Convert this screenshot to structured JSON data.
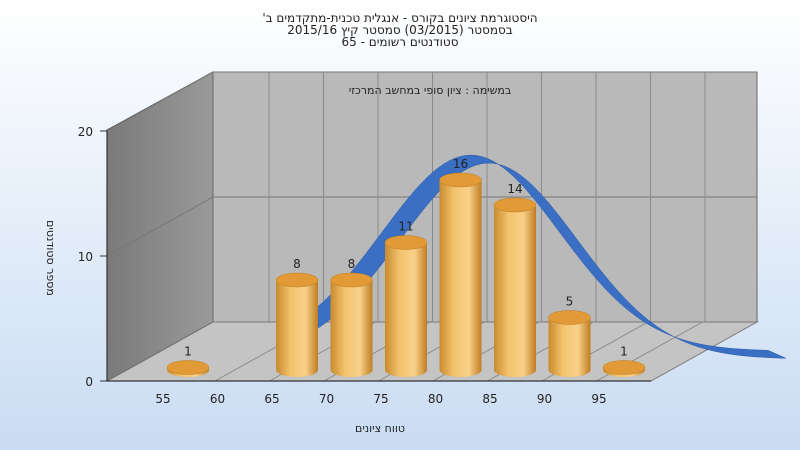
{
  "header": {
    "line1": "היסטוגרמת ציונים בקורס - אנגלית טכנית-מתקדמים ב'",
    "line2": "בסמסטר    (03/2015)   סמסטר קיץ  2015/16",
    "line3": "סטודנטים רשומים - 65"
  },
  "chart_data": {
    "type": "bar",
    "title": "במשימה : ציון סופי במחשב המרכזי",
    "xlabel": "טווח ציונים",
    "ylabel": "מספר סטודנטים",
    "categories": [
      "55",
      "60",
      "65",
      "70",
      "75",
      "80",
      "85",
      "90",
      "95"
    ],
    "x_ticks": [
      "55",
      "60",
      "65",
      "70",
      "75",
      "80",
      "85",
      "90",
      "95"
    ],
    "y_ticks": [
      "0",
      "10",
      "20"
    ],
    "ylim": [
      0,
      20
    ],
    "series": [
      {
        "values": [
          1,
          0,
          8,
          8,
          11,
          16,
          14,
          5,
          1
        ],
        "color": "#e8a540"
      }
    ],
    "curve_color": "#3a6fc4",
    "grid": true
  }
}
